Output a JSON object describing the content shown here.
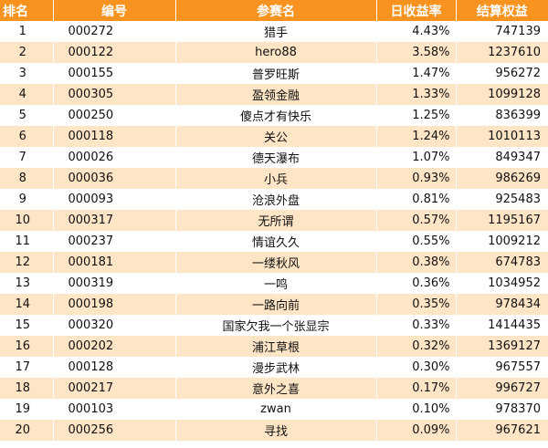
{
  "header": {
    "rank": "排名",
    "code": "编号",
    "name": "参赛名",
    "daily_rate": "日收益率",
    "equity": "结算权益"
  },
  "colors": {
    "header_bg": "#f7931e",
    "header_text": "#ffffff",
    "stripe": "#fde5c6"
  },
  "rows": [
    {
      "rank": "1",
      "code": "000272",
      "name": "猎手",
      "daily_rate": "4.43%",
      "equity": "747139"
    },
    {
      "rank": "2",
      "code": "000122",
      "name": "hero88",
      "daily_rate": "3.58%",
      "equity": "1237610"
    },
    {
      "rank": "3",
      "code": "000155",
      "name": "普罗旺斯",
      "daily_rate": "1.47%",
      "equity": "956272"
    },
    {
      "rank": "4",
      "code": "000305",
      "name": "盈领金融",
      "daily_rate": "1.33%",
      "equity": "1099128"
    },
    {
      "rank": "5",
      "code": "000250",
      "name": "傻点才有快乐",
      "daily_rate": "1.25%",
      "equity": "836399"
    },
    {
      "rank": "6",
      "code": "000118",
      "name": "关公",
      "daily_rate": "1.24%",
      "equity": "1010113"
    },
    {
      "rank": "7",
      "code": "000026",
      "name": "德天瀑布",
      "daily_rate": "1.07%",
      "equity": "849347"
    },
    {
      "rank": "8",
      "code": "000036",
      "name": "小兵",
      "daily_rate": "0.93%",
      "equity": "986269"
    },
    {
      "rank": "9",
      "code": "000093",
      "name": "沧浪外盘",
      "daily_rate": "0.81%",
      "equity": "925483"
    },
    {
      "rank": "10",
      "code": "000317",
      "name": "无所谓",
      "daily_rate": "0.57%",
      "equity": "1195167"
    },
    {
      "rank": "11",
      "code": "000237",
      "name": "情谊久久",
      "daily_rate": "0.55%",
      "equity": "1009212"
    },
    {
      "rank": "12",
      "code": "000181",
      "name": "一缕秋风",
      "daily_rate": "0.38%",
      "equity": "674783"
    },
    {
      "rank": "13",
      "code": "000319",
      "name": "一鸣",
      "daily_rate": "0.36%",
      "equity": "1034952"
    },
    {
      "rank": "14",
      "code": "000198",
      "name": "一路向前",
      "daily_rate": "0.35%",
      "equity": "978434"
    },
    {
      "rank": "15",
      "code": "000320",
      "name": "国家欠我一个张显宗",
      "daily_rate": "0.33%",
      "equity": "1414435"
    },
    {
      "rank": "16",
      "code": "000202",
      "name": "浦江草根",
      "daily_rate": "0.32%",
      "equity": "1369127"
    },
    {
      "rank": "17",
      "code": "000128",
      "name": "漫步武林",
      "daily_rate": "0.30%",
      "equity": "967557"
    },
    {
      "rank": "18",
      "code": "000217",
      "name": "意外之喜",
      "daily_rate": "0.17%",
      "equity": "996727"
    },
    {
      "rank": "19",
      "code": "000103",
      "name": "zwan",
      "daily_rate": "0.10%",
      "equity": "978370"
    },
    {
      "rank": "20",
      "code": "000256",
      "name": "寻找",
      "daily_rate": "0.09%",
      "equity": "967621"
    }
  ]
}
